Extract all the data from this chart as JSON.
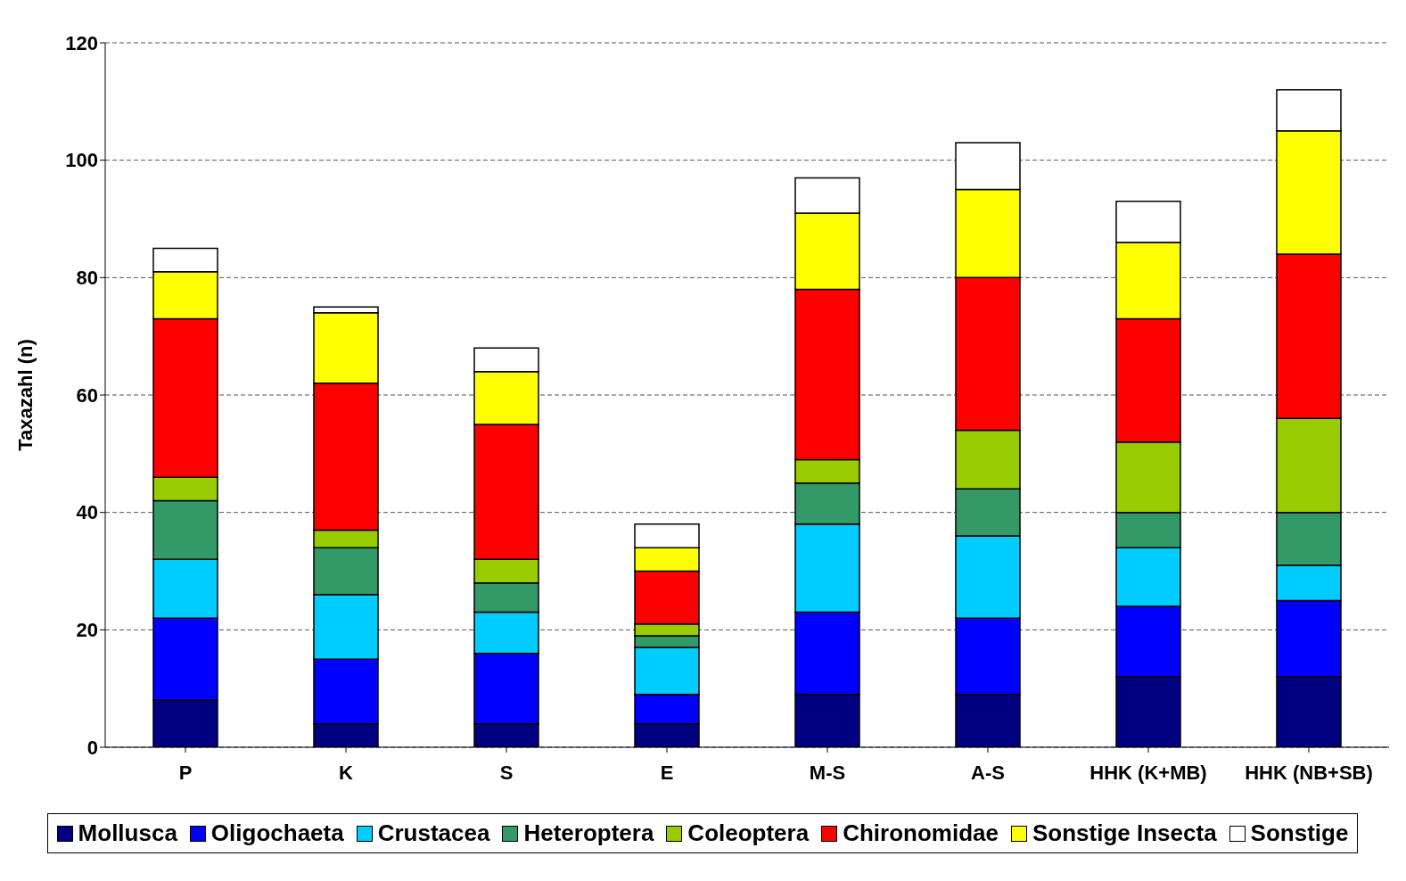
{
  "chart_data": {
    "type": "bar",
    "stacked": true,
    "ylabel": "Taxazahl (n)",
    "categories": [
      "P",
      "K",
      "S",
      "E",
      "M-S",
      "A-S",
      "HHK (K+MB)",
      "HHK (NB+SB)"
    ],
    "series": [
      {
        "name": "Mollusca",
        "color": "#000080",
        "values": [
          8,
          4,
          4,
          4,
          9,
          9,
          12,
          12
        ]
      },
      {
        "name": "Oligochaeta",
        "color": "#0000ff",
        "values": [
          14,
          11,
          12,
          5,
          14,
          13,
          12,
          13
        ]
      },
      {
        "name": "Crustacea",
        "color": "#00ccff",
        "values": [
          10,
          11,
          7,
          8,
          15,
          14,
          10,
          6
        ]
      },
      {
        "name": "Heteroptera",
        "color": "#339966",
        "values": [
          10,
          8,
          5,
          2,
          7,
          8,
          6,
          9
        ]
      },
      {
        "name": "Coleoptera",
        "color": "#99cc00",
        "values": [
          4,
          3,
          4,
          2,
          4,
          10,
          12,
          16
        ]
      },
      {
        "name": "Chironomidae",
        "color": "#ff0000",
        "values": [
          27,
          25,
          23,
          9,
          29,
          26,
          21,
          28
        ]
      },
      {
        "name": "Sonstige Insecta",
        "color": "#ffff00",
        "values": [
          8,
          12,
          9,
          4,
          13,
          15,
          13,
          21
        ]
      },
      {
        "name": "Sonstige",
        "color": "#ffffff",
        "values": [
          4,
          1,
          4,
          4,
          6,
          8,
          7,
          7
        ]
      }
    ],
    "ylim": [
      0,
      120
    ],
    "yticks": [
      0,
      20,
      40,
      60,
      80,
      100,
      120
    ],
    "grid": "y",
    "legend": "bottom"
  }
}
